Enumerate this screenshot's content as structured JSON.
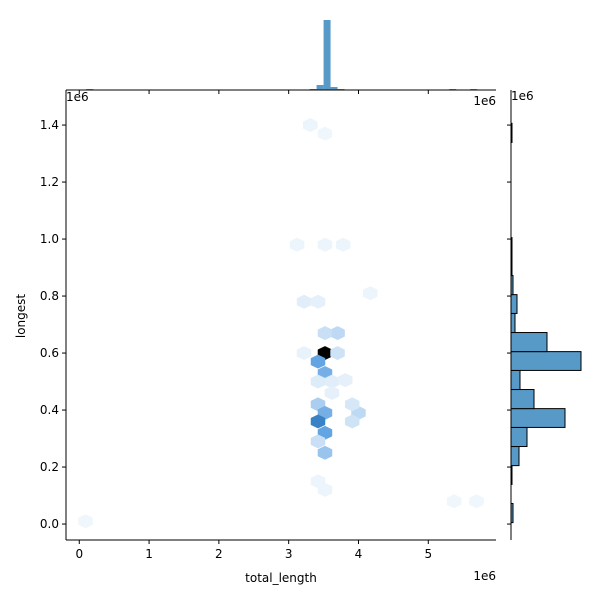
{
  "chart_data": [
    {
      "type": "hexbin",
      "xlabel": "total_length",
      "ylabel": "longest",
      "x_offset": "1e6",
      "y_offset": "1e6",
      "x": [
        3.52,
        3.42,
        3.52,
        3.7,
        3.52,
        3.7,
        3.42,
        3.52,
        3.42,
        3.52,
        3.42,
        3.52,
        4.0,
        3.91,
        3.91,
        3.22,
        3.42,
        3.42,
        3.62,
        3.81,
        3.12,
        3.78,
        3.52,
        3.31,
        3.52,
        4.17,
        0.09,
        5.37,
        5.69,
        3.42,
        3.52,
        3.22,
        3.62
      ],
      "y": [
        0.6,
        0.57,
        0.53,
        0.67,
        0.67,
        0.6,
        0.42,
        0.39,
        0.36,
        0.32,
        0.29,
        0.25,
        0.39,
        0.42,
        0.36,
        0.78,
        0.78,
        0.5,
        0.5,
        0.505,
        0.98,
        0.98,
        0.98,
        1.4,
        1.37,
        0.81,
        0.01,
        0.08,
        0.08,
        0.15,
        0.12,
        0.6,
        0.46
      ],
      "counts": [
        100,
        40,
        35,
        15,
        12,
        10,
        20,
        35,
        55,
        40,
        12,
        25,
        15,
        8,
        10,
        5,
        4,
        6,
        5,
        4,
        2,
        2,
        2,
        2,
        1,
        2,
        1,
        1,
        1,
        2,
        2,
        3,
        4
      ],
      "colors": [
        "#f3f8fd",
        "#3f90dc",
        "#000000"
      ],
      "xlim": [
        -0.19,
        5.97
      ],
      "ylim": [
        -0.056,
        1.523
      ],
      "xticks": [
        0,
        1,
        2,
        3,
        4,
        5
      ],
      "yticks": [
        {
          "value": 0,
          "label": "0.0"
        },
        0.2,
        0.4,
        0.6,
        0.8,
        {
          "value": 1,
          "label": "1.0"
        },
        1.2,
        1.4
      ]
    },
    {
      "type": "histogram",
      "orientation": "vertical",
      "offset_text": "1e6",
      "color": "#5799c7",
      "bins": [
        0.1,
        0.2,
        0.3,
        0.4,
        0.5,
        0.6,
        0.7,
        0.8,
        0.9,
        1.0,
        1.1,
        1.2,
        1.3,
        1.4,
        1.5,
        1.6,
        1.7,
        1.8,
        1.9,
        2.0,
        2.1,
        2.2,
        2.3,
        2.4,
        2.5,
        2.6,
        2.7,
        2.8,
        2.9,
        3.0,
        3.1,
        3.2,
        3.3,
        3.4,
        3.5,
        3.6,
        3.7,
        3.8,
        3.9,
        4.0,
        4.1,
        4.2,
        4.3,
        4.4,
        4.5,
        4.6,
        4.7,
        4.8,
        4.9,
        5.0,
        5.1,
        5.2,
        5.3,
        5.4,
        5.5,
        5.6,
        5.7
      ],
      "counts": [
        1,
        0,
        0,
        0,
        0,
        0,
        0,
        0,
        0,
        0,
        0,
        0,
        0,
        0,
        0,
        0,
        0,
        0,
        0,
        0,
        0,
        0,
        0,
        0,
        0,
        0,
        0,
        0,
        0,
        0,
        0,
        0,
        1,
        5,
        70,
        3,
        1,
        0,
        0,
        0,
        0,
        0,
        0,
        0,
        0,
        0,
        0,
        0,
        0,
        0,
        0,
        0,
        1,
        0,
        0,
        1
      ],
      "xlim": [
        -0.19,
        5.97
      ],
      "ylim": [
        0,
        75
      ],
      "xticks": [
        0,
        1,
        2,
        3,
        4,
        5
      ]
    },
    {
      "type": "histogram",
      "orientation": "horizontal",
      "offset_text": "1e6",
      "color": "#5799c7",
      "edgecolor": "#000000",
      "bins": [
        0.005,
        0.072,
        0.139,
        0.205,
        0.272,
        0.339,
        0.405,
        0.472,
        0.539,
        0.605,
        0.672,
        0.739,
        0.805,
        0.872,
        0.939,
        1.005,
        1.072,
        1.139,
        1.205,
        1.272,
        1.339,
        1.406
      ],
      "counts": [
        2,
        0,
        1,
        8,
        16,
        54,
        23,
        9,
        70,
        36,
        4,
        6,
        2,
        1,
        1,
        0,
        0,
        0,
        0,
        0,
        1
      ],
      "xlim": [
        0,
        85
      ],
      "ylim": [
        -0.056,
        1.523
      ],
      "yticks": [
        0,
        0.2,
        0.4,
        0.6,
        0.8,
        1,
        1.2,
        1.4
      ]
    }
  ]
}
